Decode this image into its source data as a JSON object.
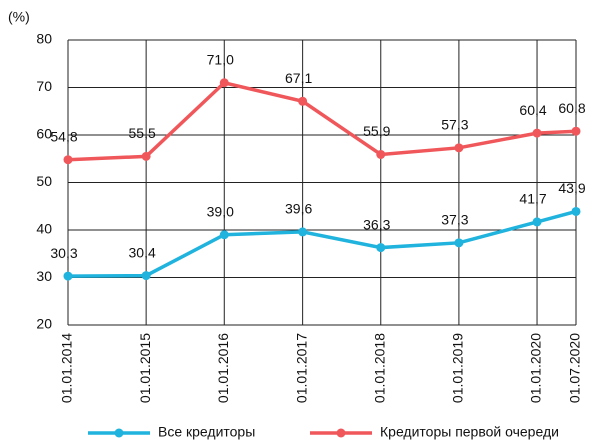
{
  "chart_data": {
    "type": "line",
    "ylabel": "(%)",
    "x": [
      "01.01.2014",
      "01.01.2015",
      "01.01.2016",
      "01.01.2017",
      "01.01.2018",
      "01.01.2019",
      "01.01.2020",
      "01.07.2020"
    ],
    "series": [
      {
        "name": "Все кредиторы",
        "color": "#1fb3dd",
        "values": [
          30.3,
          30.4,
          39.0,
          39.6,
          36.3,
          37.3,
          41.7,
          43.9
        ],
        "value_labels": [
          "30,3",
          "30,4",
          "39,0",
          "39,6",
          "36,3",
          "37,3",
          "41,7",
          "43,9"
        ]
      },
      {
        "name": "Кредиторы первой очереди",
        "color": "#f0575b",
        "values": [
          54.8,
          55.5,
          71.0,
          67.1,
          55.9,
          57.3,
          60.4,
          60.8
        ],
        "value_labels": [
          "54,8",
          "55,5",
          "71,0",
          "67,1",
          "55,9",
          "57,3",
          "60,4",
          "60,8"
        ]
      }
    ],
    "ylim": [
      20,
      80
    ],
    "yticks": [
      20,
      30,
      40,
      50,
      60,
      70,
      80
    ],
    "grid": true,
    "legend": "bottom"
  }
}
